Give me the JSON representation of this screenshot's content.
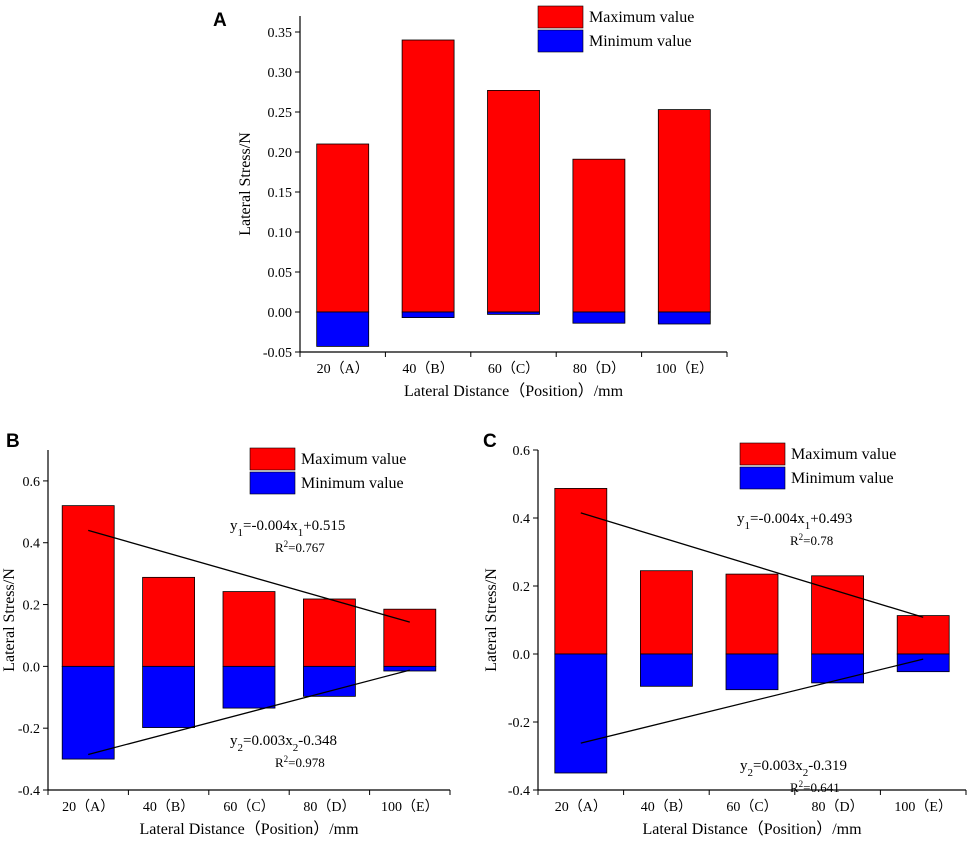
{
  "colors": {
    "max": "#ff0000",
    "min": "#0000ff",
    "axis": "#000000"
  },
  "chart_data": [
    {
      "panel": "A",
      "type": "bar",
      "categories": [
        "20（A）",
        "40（B）",
        "60（C）",
        "80（D）",
        "100（E）"
      ],
      "series": [
        {
          "name": "Maximum value",
          "values": [
            0.21,
            0.34,
            0.277,
            0.191,
            0.253
          ]
        },
        {
          "name": "Minimum value",
          "values": [
            -0.043,
            -0.007,
            -0.003,
            -0.014,
            -0.015
          ]
        }
      ],
      "ylim": [
        -0.05,
        0.37
      ],
      "yticks": [
        -0.05,
        0.0,
        0.05,
        0.1,
        0.15,
        0.2,
        0.25,
        0.3,
        0.35
      ],
      "ytick_labels": [
        "-0.05",
        "0.00",
        "0.05",
        "0.10",
        "0.15",
        "0.20",
        "0.25",
        "0.30",
        "0.35"
      ],
      "xlabel": "Lateral Distance（Position）/mm",
      "ylabel": "Lateral Stress/N",
      "legend": [
        "Maximum value",
        "Minimum value"
      ],
      "annotations": []
    },
    {
      "panel": "B",
      "type": "bar",
      "categories": [
        "20（A）",
        "40（B）",
        "60（C）",
        "80（D）",
        "100（E）"
      ],
      "series": [
        {
          "name": "Maximum value",
          "values": [
            0.52,
            0.288,
            0.242,
            0.218,
            0.185
          ]
        },
        {
          "name": "Minimum value",
          "values": [
            -0.3,
            -0.198,
            -0.135,
            -0.097,
            -0.015
          ]
        }
      ],
      "ylim": [
        -0.4,
        0.7
      ],
      "yticks": [
        -0.4,
        -0.2,
        0.0,
        0.2,
        0.4,
        0.6
      ],
      "ytick_labels": [
        "-0.4",
        "-0.2",
        "0.0",
        "0.2",
        "0.4",
        "0.6"
      ],
      "xlabel": "Lateral Distance（Position）/mm",
      "ylabel": "Lateral Stress/N",
      "legend": [
        "Maximum value",
        "Minimum value"
      ],
      "fit_lines": [
        {
          "x": [
            0,
            4
          ],
          "y": [
            0.44,
            0.143
          ]
        },
        {
          "x": [
            0,
            4
          ],
          "y": [
            -0.285,
            -0.012
          ]
        }
      ],
      "annotations": [
        {
          "y": "y",
          "sub1": "1",
          "mid": "=-0.004x",
          "sub2": "1",
          "tail": "+0.515",
          "r2": "R",
          "r2sup": "2",
          "r2tail": "=0.767"
        },
        {
          "y": "y",
          "sub1": "2",
          "mid": "=0.003x",
          "sub2": "2",
          "tail": "-0.348",
          "r2": "R",
          "r2sup": "2",
          "r2tail": "=0.978"
        }
      ]
    },
    {
      "panel": "C",
      "type": "bar",
      "categories": [
        "20（A）",
        "40（B）",
        "60（C）",
        "80（D）",
        "100（E）"
      ],
      "series": [
        {
          "name": "Maximum value",
          "values": [
            0.487,
            0.245,
            0.235,
            0.23,
            0.113
          ]
        },
        {
          "name": "Minimum value",
          "values": [
            -0.35,
            -0.095,
            -0.105,
            -0.085,
            -0.052
          ]
        }
      ],
      "ylim": [
        -0.4,
        0.6
      ],
      "yticks": [
        -0.4,
        -0.2,
        0.0,
        0.2,
        0.4,
        0.6
      ],
      "ytick_labels": [
        "-0.4",
        "-0.2",
        "0.0",
        "0.2",
        "0.4",
        "0.6"
      ],
      "xlabel": "Lateral Distance（Position）/mm",
      "ylabel": "Lateral Stress/N",
      "legend": [
        "Maximum value",
        "Minimum value"
      ],
      "fit_lines": [
        {
          "x": [
            0,
            4
          ],
          "y": [
            0.415,
            0.108
          ]
        },
        {
          "x": [
            0,
            4
          ],
          "y": [
            -0.262,
            -0.015
          ]
        }
      ],
      "annotations": [
        {
          "y": "y",
          "sub1": "1",
          "mid": "=-0.004x",
          "sub2": "1",
          "tail": "+0.493",
          "r2": "R",
          "r2sup": "2",
          "r2tail": "=0.78"
        },
        {
          "y": "y",
          "sub1": "2",
          "mid": "=0.003x",
          "sub2": "2",
          "tail": "-0.319",
          "r2": "R",
          "r2sup": "2",
          "r2tail": "=0.641"
        }
      ]
    }
  ]
}
